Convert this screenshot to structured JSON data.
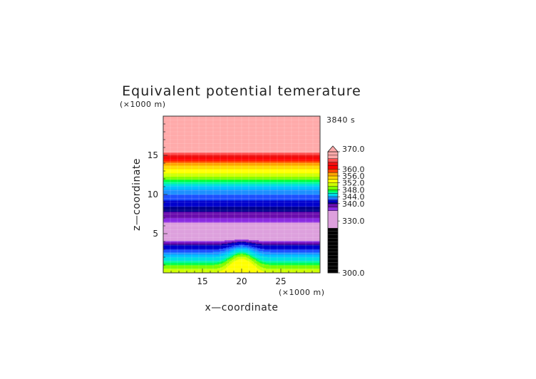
{
  "chart_data": {
    "type": "heatmap",
    "title": "Equivalent potential temerature",
    "xlabel": "x—coordinate",
    "ylabel": "z—coordinate",
    "x_unit": "(×1000 m)",
    "y_unit": "(×1000 m)",
    "time_label": "3840 s",
    "xlim": [
      10,
      30
    ],
    "ylim": [
      0,
      20
    ],
    "x_ticks": [
      15,
      20,
      25
    ],
    "y_ticks": [
      5,
      10,
      15
    ],
    "colorbar": {
      "range": [
        300,
        370
      ],
      "tick_labels": [
        "370.0",
        "360.0",
        "356.0",
        "352.0",
        "348.0",
        "344.0",
        "340.0",
        "330.0",
        "300.0"
      ],
      "tick_values": [
        370,
        360,
        356,
        352,
        348,
        344,
        340,
        330,
        300
      ],
      "colors": [
        {
          "from": 300,
          "to": 326,
          "color": "#000000"
        },
        {
          "from": 326,
          "to": 336,
          "color": "#dda0dd"
        },
        {
          "from": 336,
          "to": 338,
          "color": "#8a2be2"
        },
        {
          "from": 338,
          "to": 340,
          "color": "#6a0dad"
        },
        {
          "from": 340,
          "to": 341,
          "color": "#00008b"
        },
        {
          "from": 341,
          "to": 342,
          "color": "#0000cd"
        },
        {
          "from": 342,
          "to": 343,
          "color": "#1e50ff"
        },
        {
          "from": 343,
          "to": 344,
          "color": "#1e90ff"
        },
        {
          "from": 344,
          "to": 345,
          "color": "#00bfff"
        },
        {
          "from": 345,
          "to": 346,
          "color": "#00e0e0"
        },
        {
          "from": 346,
          "to": 347,
          "color": "#00fa9a"
        },
        {
          "from": 347,
          "to": 348,
          "color": "#00ff40"
        },
        {
          "from": 348,
          "to": 350,
          "color": "#7cfc00"
        },
        {
          "from": 350,
          "to": 352,
          "color": "#ccff00"
        },
        {
          "from": 352,
          "to": 354,
          "color": "#ffff00"
        },
        {
          "from": 354,
          "to": 356,
          "color": "#ffd700"
        },
        {
          "from": 356,
          "to": 358,
          "color": "#ffa500"
        },
        {
          "from": 358,
          "to": 360,
          "color": "#ff4500"
        },
        {
          "from": 360,
          "to": 362,
          "color": "#ff0000"
        },
        {
          "from": 362,
          "to": 364,
          "color": "#ee1010"
        },
        {
          "from": 364,
          "to": 366,
          "color": "#ff5050"
        },
        {
          "from": 366,
          "to": 370,
          "color": "#ffaaaa"
        }
      ]
    },
    "profile": [
      {
        "z": 0.0,
        "value": 352
      },
      {
        "z": 0.5,
        "value": 350
      },
      {
        "z": 1.0,
        "value": 348
      },
      {
        "z": 1.5,
        "value": 346
      },
      {
        "z": 2.0,
        "value": 345
      },
      {
        "z": 2.5,
        "value": 343.5
      },
      {
        "z": 3.0,
        "value": 342
      },
      {
        "z": 3.5,
        "value": 341
      },
      {
        "z": 4.0,
        "value": 337
      },
      {
        "z": 4.5,
        "value": 331
      },
      {
        "z": 5.0,
        "value": 330
      },
      {
        "z": 6.0,
        "value": 330
      },
      {
        "z": 6.5,
        "value": 336.5
      },
      {
        "z": 7.0,
        "value": 338
      },
      {
        "z": 7.5,
        "value": 339
      },
      {
        "z": 8.0,
        "value": 340.5
      },
      {
        "z": 8.5,
        "value": 341
      },
      {
        "z": 9.0,
        "value": 341.5
      },
      {
        "z": 9.5,
        "value": 342.5
      },
      {
        "z": 10.0,
        "value": 343
      },
      {
        "z": 10.5,
        "value": 343.8
      },
      {
        "z": 11.0,
        "value": 344.5
      },
      {
        "z": 11.5,
        "value": 346.5
      },
      {
        "z": 12.0,
        "value": 348.5
      },
      {
        "z": 12.5,
        "value": 351
      },
      {
        "z": 13.0,
        "value": 353
      },
      {
        "z": 13.5,
        "value": 355
      },
      {
        "z": 14.0,
        "value": 357
      },
      {
        "z": 14.5,
        "value": 361
      },
      {
        "z": 15.0,
        "value": 363
      },
      {
        "z": 15.5,
        "value": 367
      },
      {
        "z": 20.0,
        "value": 367
      }
    ],
    "bump": {
      "center_x": 20,
      "width": 1.7,
      "height": 1.4,
      "max_z": 4.5
    },
    "grid": true
  }
}
